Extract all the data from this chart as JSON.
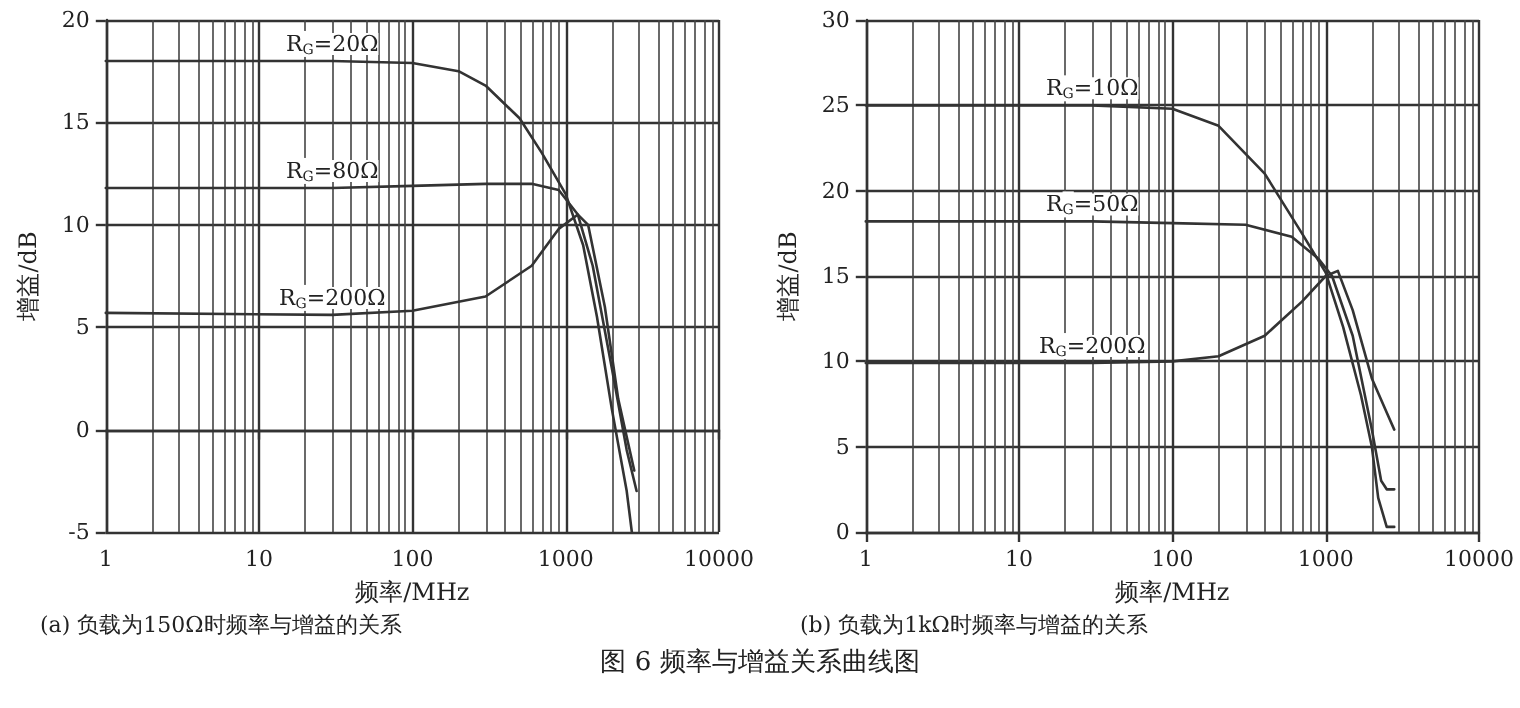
{
  "chart_data": [
    {
      "type": "line",
      "xlabel": "频率/MHz",
      "ylabel": "增益/dB",
      "log": "x",
      "grid": true,
      "legend": false,
      "marker": "none",
      "line_style": "solid",
      "xlim": [
        1,
        10000
      ],
      "xticks": [
        1,
        10,
        100,
        1000,
        10000
      ],
      "ylim": [
        -5,
        20
      ],
      "yticks": [
        -5,
        0,
        5,
        10,
        15,
        20
      ],
      "annotations": [
        "(a) 负载为150Ω时频率与增益的关系"
      ],
      "series": [
        {
          "name": "R$_{G}$=20Ω",
          "color": "#333333",
          "x": [
            1,
            30,
            100,
            200,
            300,
            500,
            700,
            1000,
            1300,
            1600,
            2000,
            2500,
            2700
          ],
          "values": [
            18,
            18,
            17.9,
            17.5,
            16.8,
            15.2,
            13.5,
            11.5,
            9,
            5.5,
            1,
            -3,
            -5
          ]
        },
        {
          "name": "R$_{G}$=80Ω",
          "color": "#333333",
          "x": [
            1,
            30,
            100,
            300,
            600,
            900,
            1200,
            1500,
            2000,
            2500,
            2900
          ],
          "values": [
            11.8,
            11.8,
            11.9,
            12,
            12,
            11.7,
            10.5,
            8,
            3,
            -1,
            -3
          ]
        },
        {
          "name": "R$_{G}$=200Ω",
          "color": "#333333",
          "x": [
            1,
            30,
            100,
            300,
            600,
            900,
            1200,
            1400,
            1800,
            2200,
            2800
          ],
          "values": [
            5.7,
            5.6,
            5.8,
            6.5,
            8,
            9.8,
            10.5,
            10,
            6,
            1.5,
            -2
          ]
        }
      ]
    },
    {
      "type": "line",
      "xlabel": "频率/MHz",
      "ylabel": "增益/dB",
      "log": "x",
      "grid": true,
      "legend": false,
      "marker": "none",
      "line_style": "solid",
      "xlim": [
        1,
        10000
      ],
      "xticks": [
        1,
        10,
        100,
        1000,
        10000
      ],
      "ylim": [
        0,
        30
      ],
      "yticks": [
        0,
        5,
        10,
        15,
        20,
        25,
        30
      ],
      "annotations": [
        "(b) 负载为1kΩ时频率与增益的关系",
        "图 6 频率与增益关系曲线图"
      ],
      "series": [
        {
          "name": "R$_{G}$=10Ω",
          "color": "#333333",
          "x": [
            1,
            30,
            100,
            200,
            400,
            700,
            1000,
            1300,
            1700,
            2000,
            2200,
            2500,
            2800
          ],
          "values": [
            25,
            25,
            24.8,
            23.8,
            21,
            17.5,
            15.2,
            12,
            8,
            5,
            2,
            0.3,
            0.3
          ]
        },
        {
          "name": "R$_{G}$=50Ω",
          "color": "#333333",
          "x": [
            1,
            30,
            100,
            300,
            600,
            900,
            1100,
            1500,
            2000,
            2300,
            2500,
            2800
          ],
          "values": [
            18.2,
            18.2,
            18.1,
            18,
            17.3,
            16,
            15,
            11.5,
            6,
            3,
            2.5,
            2.5
          ]
        },
        {
          "name": "R$_{G}$=200Ω",
          "color": "#333333",
          "x": [
            1,
            30,
            100,
            200,
            400,
            700,
            1000,
            1200,
            1500,
            2000,
            2500,
            2800
          ],
          "values": [
            9.9,
            9.9,
            10,
            10.3,
            11.5,
            13.5,
            15,
            15.3,
            13,
            9,
            7,
            6
          ]
        }
      ]
    }
  ]
}
